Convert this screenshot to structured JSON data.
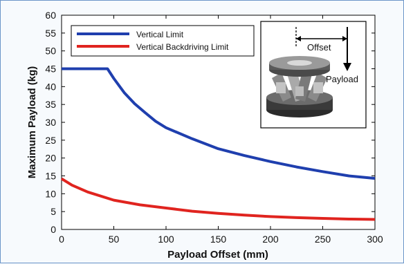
{
  "chart_data": {
    "type": "line",
    "xlabel": "Payload Offset (mm)",
    "ylabel": "Maximum Payload (kg)",
    "xlim": [
      0,
      300
    ],
    "ylim": [
      0,
      60
    ],
    "xticks": [
      0,
      50,
      100,
      150,
      200,
      250,
      300
    ],
    "yticks": [
      0,
      5,
      10,
      15,
      20,
      25,
      30,
      35,
      40,
      45,
      50,
      55,
      60
    ],
    "grid": false,
    "legend_position": "top-left",
    "series": [
      {
        "name": "Vertical Limit",
        "color": "#1f3fae",
        "x": [
          0,
          10,
          20,
          30,
          40,
          44,
          50,
          60,
          70,
          80,
          90,
          100,
          125,
          150,
          175,
          200,
          225,
          250,
          275,
          300
        ],
        "y": [
          45,
          45,
          45,
          45,
          45,
          45,
          42.3,
          38.3,
          35.2,
          32.7,
          30.3,
          28.5,
          25.4,
          22.6,
          20.7,
          19.0,
          17.5,
          16.2,
          15.0,
          14.3
        ]
      },
      {
        "name": "Vertical Backdriving Limit",
        "color": "#e0241f",
        "x": [
          0,
          10,
          25,
          50,
          75,
          100,
          125,
          150,
          175,
          200,
          225,
          250,
          275,
          300
        ],
        "y": [
          14.2,
          12.4,
          10.5,
          8.2,
          6.9,
          6.0,
          5.1,
          4.5,
          4.0,
          3.6,
          3.3,
          3.1,
          2.9,
          2.8
        ]
      }
    ],
    "inset": {
      "offset_label": "Offset",
      "payload_label": "Payload"
    }
  }
}
